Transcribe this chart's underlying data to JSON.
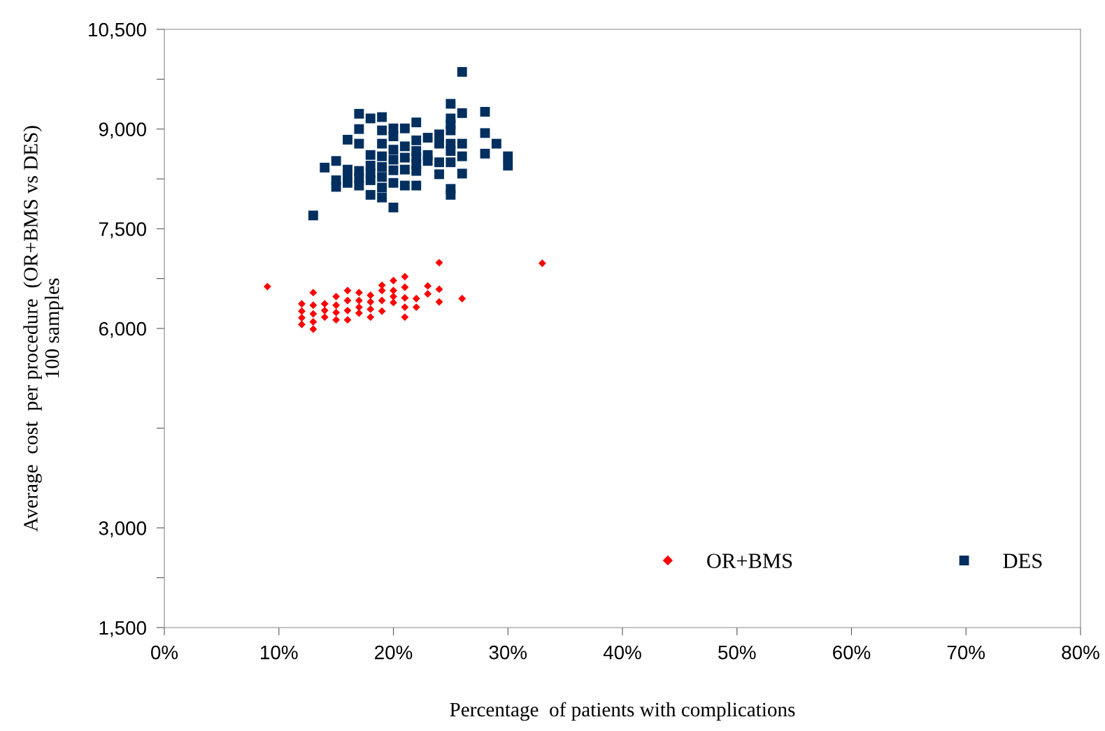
{
  "chart_data": {
    "type": "scatter",
    "xlabel": "Percentage  of patients with complications",
    "ylabel": "Average  cost  per procedure  (OR+BMS vs DES)\n100 samples",
    "xlim": [
      0,
      80
    ],
    "xticks": [
      {
        "value": 0,
        "label": "0%"
      },
      {
        "value": 10,
        "label": "10%"
      },
      {
        "value": 20,
        "label": "20%"
      },
      {
        "value": 30,
        "label": "30%"
      },
      {
        "value": 40,
        "label": "40%"
      },
      {
        "value": 50,
        "label": "50%"
      },
      {
        "value": 60,
        "label": "60%"
      },
      {
        "value": 70,
        "label": "70%"
      },
      {
        "value": 80,
        "label": "80%"
      }
    ],
    "ylim": [
      1500,
      10500
    ],
    "yticks": [
      {
        "value": 1500,
        "label": "1,500"
      },
      {
        "value": 2250,
        "label": null
      },
      {
        "value": 3000,
        "label": "3,000"
      },
      {
        "value": 4500,
        "label": null
      },
      {
        "value": 6000,
        "label": "6,000"
      },
      {
        "value": 6750,
        "label": null
      },
      {
        "value": 7500,
        "label": "7,500"
      },
      {
        "value": 8250,
        "label": null
      },
      {
        "value": 9000,
        "label": "9,000"
      },
      {
        "value": 9750,
        "label": null
      },
      {
        "value": 10500,
        "label": "10,500"
      }
    ],
    "grid": false,
    "legend": "bottom right",
    "series": [
      {
        "name": "OR+BMS",
        "color": "#ff0000",
        "marker": "diamond",
        "x": [
          9,
          12,
          12,
          12,
          12,
          13,
          13,
          13,
          13,
          13,
          14,
          14,
          14,
          15,
          15,
          15,
          15,
          16,
          16,
          16,
          16,
          17,
          17,
          17,
          17,
          18,
          18,
          18,
          18,
          19,
          19,
          19,
          19,
          20,
          20,
          20,
          20,
          21,
          21,
          21,
          21,
          21,
          22,
          22,
          23,
          23,
          24,
          24,
          24,
          26,
          33
        ],
        "values": [
          6630,
          6370,
          6260,
          6160,
          6060,
          6540,
          6350,
          6220,
          6100,
          5990,
          6370,
          6270,
          6170,
          6480,
          6350,
          6240,
          6130,
          6570,
          6420,
          6270,
          6130,
          6540,
          6420,
          6320,
          6230,
          6500,
          6400,
          6290,
          6170,
          6650,
          6570,
          6420,
          6260,
          6720,
          6570,
          6480,
          6390,
          6780,
          6620,
          6460,
          6320,
          6170,
          6450,
          6320,
          6640,
          6520,
          6990,
          6590,
          6400,
          6450,
          6980
        ]
      },
      {
        "name": "DES",
        "color": "#002f5f",
        "marker": "square",
        "x": [
          13,
          14,
          15,
          15,
          15,
          16,
          16,
          16,
          16,
          17,
          17,
          17,
          17,
          17,
          17,
          18,
          18,
          18,
          18,
          18,
          18,
          19,
          19,
          19,
          19,
          19,
          19,
          19,
          19,
          20,
          20,
          20,
          20,
          20,
          20,
          20,
          21,
          21,
          21,
          21,
          21,
          22,
          22,
          22,
          22,
          22,
          22,
          22,
          23,
          23,
          23,
          24,
          24,
          24,
          24,
          25,
          25,
          25,
          25,
          25,
          25,
          25,
          25,
          25,
          26,
          26,
          26,
          26,
          26,
          28,
          28,
          28,
          29,
          30,
          30
        ],
        "values": [
          7700,
          8420,
          8520,
          8230,
          8130,
          8840,
          8390,
          8260,
          8190,
          9230,
          9000,
          8780,
          8370,
          8260,
          8150,
          9160,
          8610,
          8450,
          8340,
          8230,
          8010,
          9180,
          8980,
          8780,
          8590,
          8430,
          8280,
          8120,
          7970,
          9010,
          8890,
          8690,
          8540,
          8380,
          8190,
          7820,
          9010,
          8740,
          8570,
          8390,
          8150,
          9100,
          8830,
          8670,
          8570,
          8470,
          8370,
          8150,
          8870,
          8610,
          8520,
          8920,
          8780,
          8500,
          8320,
          9380,
          9160,
          9070,
          8980,
          8780,
          8670,
          8500,
          8100,
          8010,
          9860,
          9240,
          8780,
          8590,
          8330,
          9260,
          8940,
          8630,
          8780,
          8590,
          8450
        ]
      }
    ]
  }
}
